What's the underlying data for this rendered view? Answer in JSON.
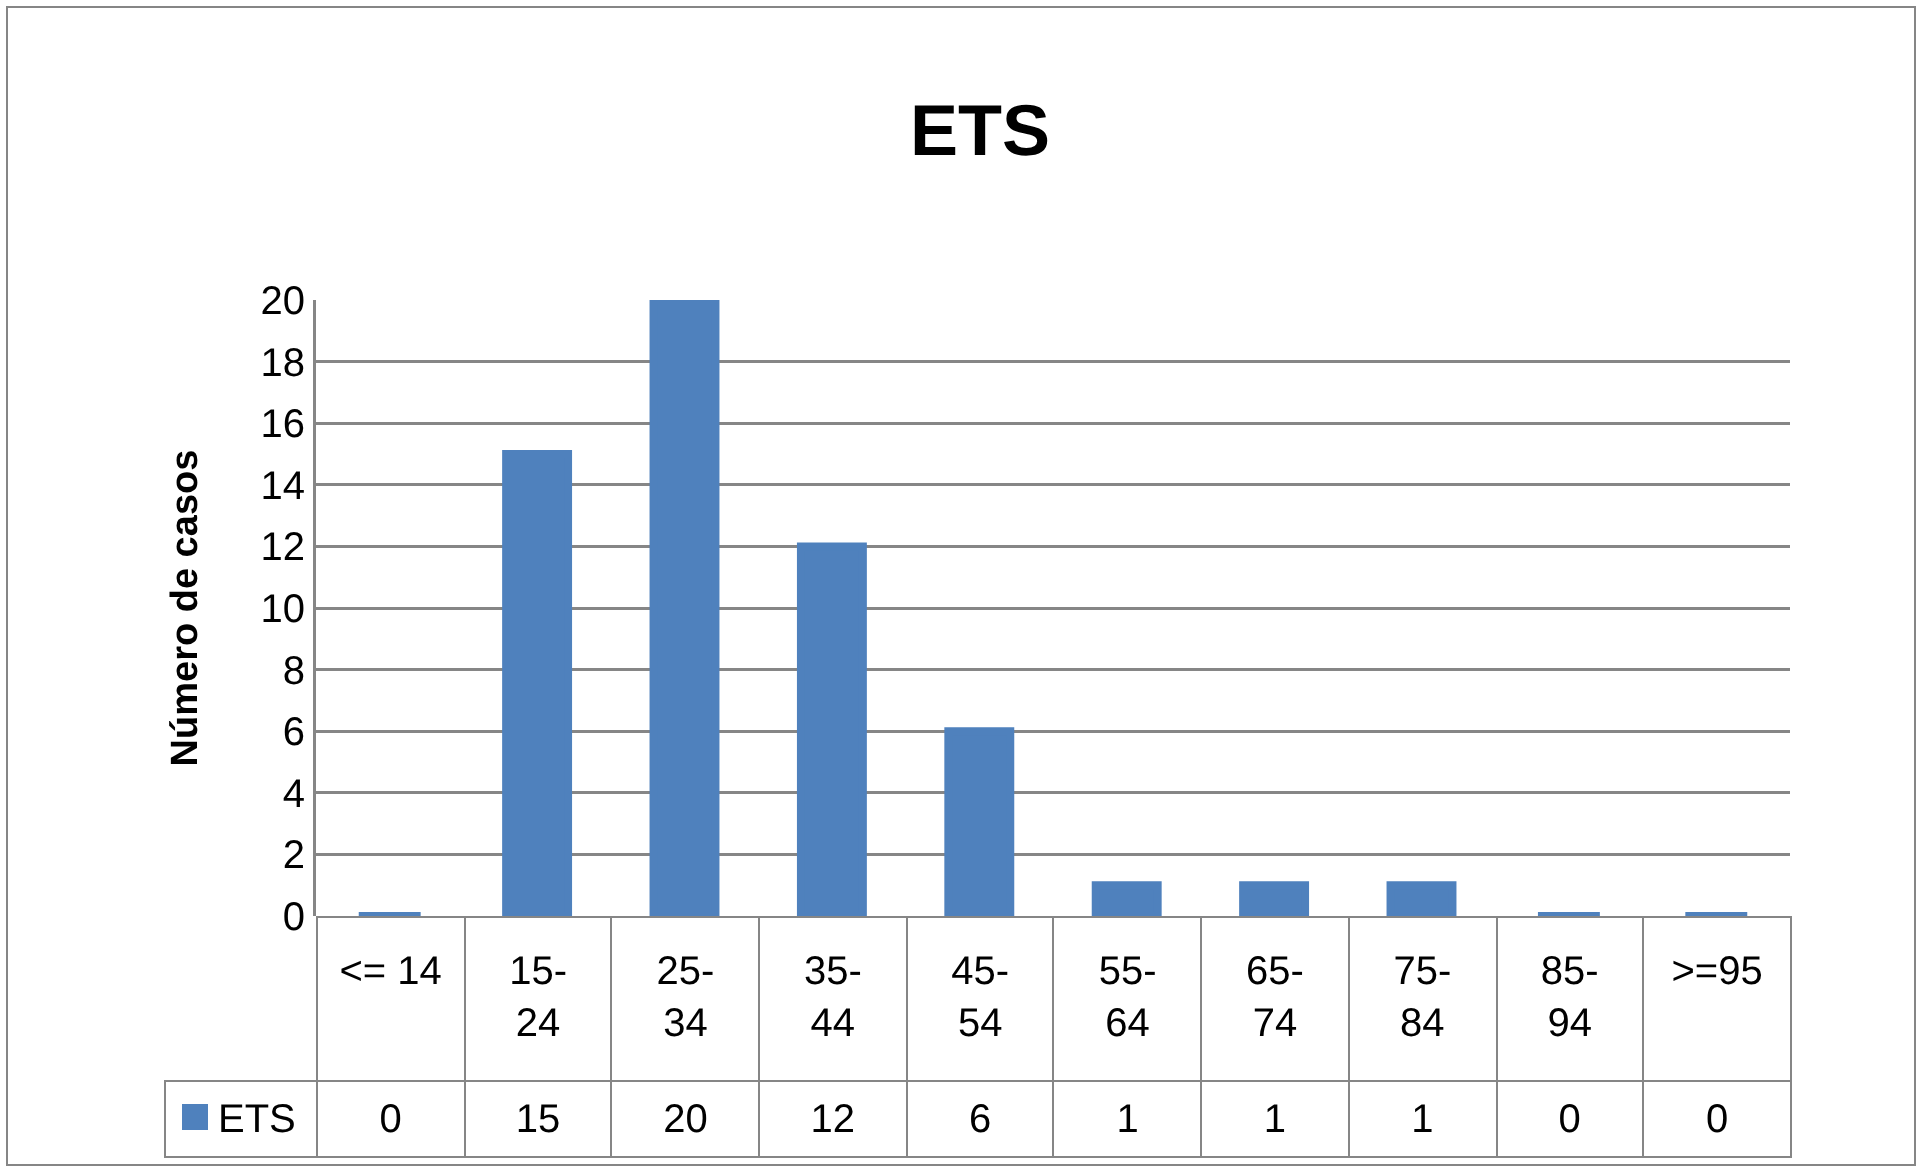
{
  "chart_data": {
    "type": "bar",
    "title": "ETS",
    "ylabel": "Número de casos",
    "categories": [
      "<= 14",
      "15-24",
      "25-34",
      "35-44",
      "45-54",
      "55-64",
      "65-74",
      "75-84",
      "85-94",
      ">=95"
    ],
    "series": [
      {
        "name": "ETS",
        "color": "#4f81bd",
        "values": [
          0,
          15,
          20,
          12,
          6,
          1,
          1,
          1,
          0,
          0
        ]
      }
    ],
    "ylim": [
      0,
      20
    ],
    "yticks": [
      0,
      2,
      4,
      6,
      8,
      10,
      12,
      14,
      16,
      18,
      20
    ],
    "grid": "y",
    "legend": "bottom",
    "data_labels": true
  }
}
